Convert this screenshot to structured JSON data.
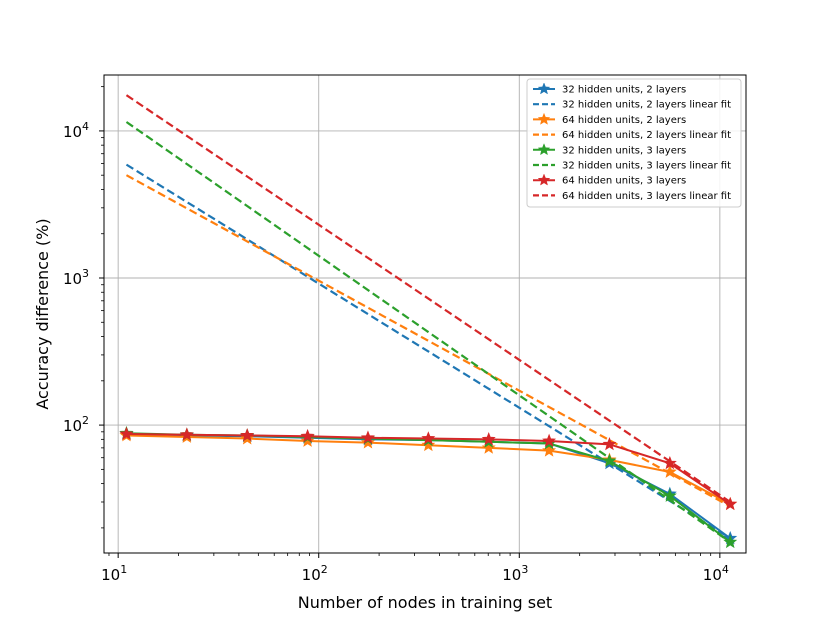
{
  "chart_data": {
    "type": "line",
    "xscale": "log",
    "yscale": "log",
    "xlim": [
      8.5,
      13500
    ],
    "ylim": [
      13.5,
      24000
    ],
    "xlabel": "Number of nodes in training set",
    "ylabel": "Accuracy difference (%)",
    "grid": true,
    "legend_position": "upper-right",
    "x_ticks": [
      {
        "value": 10,
        "base": "10",
        "exp": "1"
      },
      {
        "value": 100,
        "base": "10",
        "exp": "2"
      },
      {
        "value": 1000,
        "base": "10",
        "exp": "3"
      },
      {
        "value": 10000,
        "base": "10",
        "exp": "4"
      }
    ],
    "y_ticks": [
      {
        "value": 100,
        "base": "10",
        "exp": "2"
      },
      {
        "value": 1000,
        "base": "10",
        "exp": "3"
      },
      {
        "value": 10000,
        "base": "10",
        "exp": "4"
      }
    ],
    "x": [
      11,
      22,
      44,
      88,
      176,
      352,
      704,
      1408,
      2816,
      5632,
      11264
    ],
    "series": [
      {
        "name": "32 hidden units, 2 layers",
        "color": "#1f77b4",
        "style": "star-line",
        "values": [
          87,
          85,
          84,
          82,
          80,
          79,
          77,
          75,
          55,
          34,
          17
        ]
      },
      {
        "name": "32 hidden units, 2 layers linear fit",
        "color": "#1f77b4",
        "style": "dashed",
        "fit_x": [
          11,
          11264
        ],
        "fit_y": [
          5900,
          17
        ]
      },
      {
        "name": "64 hidden units, 2 layers",
        "color": "#ff7f0e",
        "style": "star-line",
        "values": [
          85,
          83,
          81,
          78,
          76,
          73,
          70,
          67,
          58,
          48,
          29
        ]
      },
      {
        "name": "64 hidden units, 2 layers linear fit",
        "color": "#ff7f0e",
        "style": "dashed",
        "fit_x": [
          11,
          11264
        ],
        "fit_y": [
          5000,
          28
        ]
      },
      {
        "name": "32 hidden units, 3 layers",
        "color": "#2ca02c",
        "style": "star-line",
        "values": [
          88,
          86,
          85,
          83,
          81,
          79,
          77,
          75,
          57,
          33,
          16
        ]
      },
      {
        "name": "32 hidden units, 3 layers linear fit",
        "color": "#2ca02c",
        "style": "dashed",
        "fit_x": [
          11,
          11264
        ],
        "fit_y": [
          11500,
          16
        ]
      },
      {
        "name": "64 hidden units, 3 layers",
        "color": "#d62728",
        "style": "star-line",
        "values": [
          87,
          86,
          85,
          84,
          82,
          81,
          80,
          78,
          74,
          55,
          29
        ]
      },
      {
        "name": "64 hidden units, 3 layers linear fit",
        "color": "#d62728",
        "style": "dashed",
        "fit_x": [
          11,
          11264
        ],
        "fit_y": [
          17500,
          30
        ]
      }
    ]
  }
}
